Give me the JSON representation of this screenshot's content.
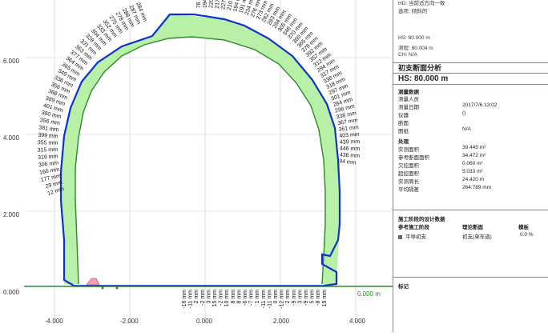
{
  "header_info": {
    "line1": "HD: 当前适方向一致",
    "line2": "选项: 倾斜的",
    "hs": "HS:  80.000 m",
    "mileage": "测程: 80.004 m",
    "ch": "CH:  N/A"
  },
  "analysis": {
    "title": "初支断面分析",
    "hs_value": "HS:  80.000 m",
    "measure_section_title": "测量数据",
    "measure_rows": [
      {
        "label": "测量人员",
        "value": ""
      },
      {
        "label": "测量日期",
        "value": "2017/7/6 13:02"
      },
      {
        "label": "仪器",
        "value": "()"
      },
      {
        "label": "断面",
        "value": ""
      },
      {
        "label": "图纸",
        "value": "N/A"
      }
    ],
    "process_section_title": "处理",
    "process_rows": [
      {
        "label": "实测面积",
        "value": "39.445 m²"
      },
      {
        "label": "参考断面面积",
        "value": "34.472 m²"
      },
      {
        "label": "欠挖面积",
        "value": "0.060 m²"
      },
      {
        "label": "超挖面积",
        "value": "5.033 m²"
      },
      {
        "label": "实测周长",
        "value": "24.420 m"
      },
      {
        "label": "平均隔差",
        "value": "264.789 mm"
      }
    ],
    "design_section_title": "施工阶段的设计数据",
    "design_header": {
      "col1": "参考施工阶段",
      "col2": "理论断面",
      "col3": "模板"
    },
    "design_row": {
      "col1": "平导初支",
      "col2": "初支(单车道)",
      "col3": "0.0 %"
    },
    "notes_title": "标记"
  },
  "plot": {
    "colors": {
      "overbreak": "#b8f0a8",
      "underbreak": "#f0a0b0",
      "measured": "#1030d0",
      "design": "#2a8a2a",
      "text": "#111111",
      "baseline_label": "#1a8a1a"
    },
    "y_tick_labels": [
      "6.000",
      "4.000",
      "2.000",
      "0.000"
    ],
    "x_tick_labels": [
      "-4.000",
      "-2.000",
      "0.000",
      "2.000",
      "4.000"
    ],
    "baseline_value": "0.000 m",
    "arch_labels": [
      "78 mm",
      "194 mm",
      "220 mm",
      "217 mm",
      "227 mm",
      "210 mm",
      "194 mm",
      "191 mm",
      "234 mm",
      "276 mm",
      "273 mm",
      "282 mm",
      "283 mm",
      "284 mm",
      "305 mm",
      "346 mm",
      "370 mm",
      "360 mm",
      "365 mm",
      "378 mm",
      "392 mm",
      "357 mm",
      "312 mm",
      "294 mm",
      "317 mm",
      "338 mm",
      "318 mm",
      "297 mm",
      "301 mm",
      "284 mm",
      "298 mm",
      "338 mm",
      "367 mm",
      "361 mm",
      "403 mm",
      "439 mm",
      "446 mm",
      "436 mm",
      "94 mm"
    ],
    "left_labels": [
      "284 mm",
      "287 mm",
      "288 mm",
      "278 mm",
      "275 mm",
      "352 mm",
      "333 mm",
      "304 mm",
      "328 mm",
      "331 mm",
      "363 mm",
      "377 mm",
      "364 mm",
      "365 mm",
      "349 mm",
      "336 mm",
      "356 mm",
      "368 mm",
      "389 mm",
      "401 mm",
      "380 mm",
      "356 mm",
      "381 mm",
      "399 mm",
      "355 mm",
      "315 mm",
      "319 mm",
      "306 mm",
      "160 mm",
      "177 mm",
      "29 mm",
      "12 mm"
    ],
    "floor_labels": [
      "-16 mm",
      "-11 mm",
      "2 mm",
      "-2 mm",
      "3 mm",
      "15 mm",
      "-2 mm",
      "10 mm",
      "8 mm",
      "8 mm",
      "-6 mm",
      "-7 mm",
      "1 mm",
      "-11 mm",
      "-11 mm",
      "0 mm",
      "-12 mm",
      "2 mm",
      "-9 mm",
      "3 mm",
      "-9 mm",
      "5 mm",
      "-8 mm",
      "19 mm"
    ]
  }
}
